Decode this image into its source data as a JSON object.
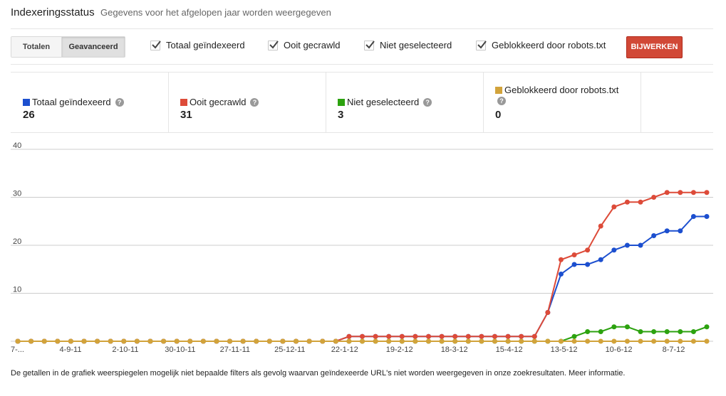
{
  "header": {
    "title": "Indexeringsstatus",
    "subtitle": "Gegevens voor het afgelopen jaar worden weergegeven"
  },
  "toolbar": {
    "tab_totals": "Totalen",
    "tab_advanced": "Geavanceerd",
    "update_label": "BIJWERKEN",
    "checkboxes": [
      {
        "label": "Totaal geïndexeerd",
        "checked": true
      },
      {
        "label": "Ooit gecrawld",
        "checked": true
      },
      {
        "label": "Niet geselecteerd",
        "checked": true
      },
      {
        "label": "Geblokkeerd door robots.txt",
        "checked": true
      }
    ]
  },
  "legend": [
    {
      "label": "Totaal geïndexeerd",
      "value": "26",
      "color": "#1c4fcf"
    },
    {
      "label": "Ooit gecrawld",
      "value": "31",
      "color": "#dd4b39"
    },
    {
      "label": "Niet geselecteerd",
      "value": "3",
      "color": "#2ca20f"
    },
    {
      "label": "Geblokkeerd door robots.txt",
      "value": "0",
      "color": "#d2a33b"
    }
  ],
  "help_glyph": "?",
  "chart_data": {
    "type": "line",
    "ylim": [
      0,
      40
    ],
    "yticks": [
      10,
      20,
      30,
      40
    ],
    "x_tick_labels": [
      "7-...",
      "4-9-11",
      "2-10-11",
      "30-10-11",
      "27-11-11",
      "25-12-11",
      "22-1-12",
      "19-2-12",
      "18-3-12",
      "15-4-12",
      "13-5-12",
      "10-6-12",
      "8-7-12"
    ],
    "grid": true,
    "series": [
      {
        "name": "Ooit gecrawld",
        "color": "#dd4b39",
        "values": [
          0,
          0,
          0,
          0,
          0,
          0,
          0,
          0,
          0,
          0,
          0,
          0,
          0,
          0,
          0,
          0,
          0,
          0,
          0,
          0,
          0,
          0,
          0,
          0,
          0,
          1,
          1,
          1,
          1,
          1,
          1,
          1,
          1,
          1,
          1,
          1,
          1,
          1,
          1,
          1,
          6,
          17,
          18,
          19,
          24,
          28,
          29,
          29,
          30,
          31,
          31,
          31,
          31
        ]
      },
      {
        "name": "Totaal geïndexeerd",
        "color": "#1c4fcf",
        "values": [
          0,
          0,
          0,
          0,
          0,
          0,
          0,
          0,
          0,
          0,
          0,
          0,
          0,
          0,
          0,
          0,
          0,
          0,
          0,
          0,
          0,
          0,
          0,
          0,
          0,
          1,
          1,
          1,
          1,
          1,
          1,
          1,
          1,
          1,
          1,
          1,
          1,
          1,
          1,
          1,
          6,
          14,
          16,
          16,
          17,
          19,
          20,
          20,
          22,
          23,
          23,
          26,
          26
        ]
      },
      {
        "name": "Niet geselecteerd",
        "color": "#2ca20f",
        "values": [
          0,
          0,
          0,
          0,
          0,
          0,
          0,
          0,
          0,
          0,
          0,
          0,
          0,
          0,
          0,
          0,
          0,
          0,
          0,
          0,
          0,
          0,
          0,
          0,
          0,
          0,
          0,
          0,
          0,
          0,
          0,
          0,
          0,
          0,
          0,
          0,
          0,
          0,
          0,
          0,
          0,
          0,
          1,
          2,
          2,
          3,
          3,
          2,
          2,
          2,
          2,
          2,
          3
        ]
      },
      {
        "name": "Geblokkeerd door robots.txt",
        "color": "#d2a33b",
        "values": [
          0,
          0,
          0,
          0,
          0,
          0,
          0,
          0,
          0,
          0,
          0,
          0,
          0,
          0,
          0,
          0,
          0,
          0,
          0,
          0,
          0,
          0,
          0,
          0,
          0,
          0,
          0,
          0,
          0,
          0,
          0,
          0,
          0,
          0,
          0,
          0,
          0,
          0,
          0,
          0,
          0,
          0,
          0,
          0,
          0,
          0,
          0,
          0,
          0,
          0,
          0,
          0,
          0
        ]
      }
    ]
  },
  "footer": {
    "text": "De getallen in de grafiek weerspiegelen mogelijk niet bepaalde filters als gevolg waarvan geïndexeerde URL's niet worden weergegeven in onze zoekresultaten. Meer informatie."
  }
}
